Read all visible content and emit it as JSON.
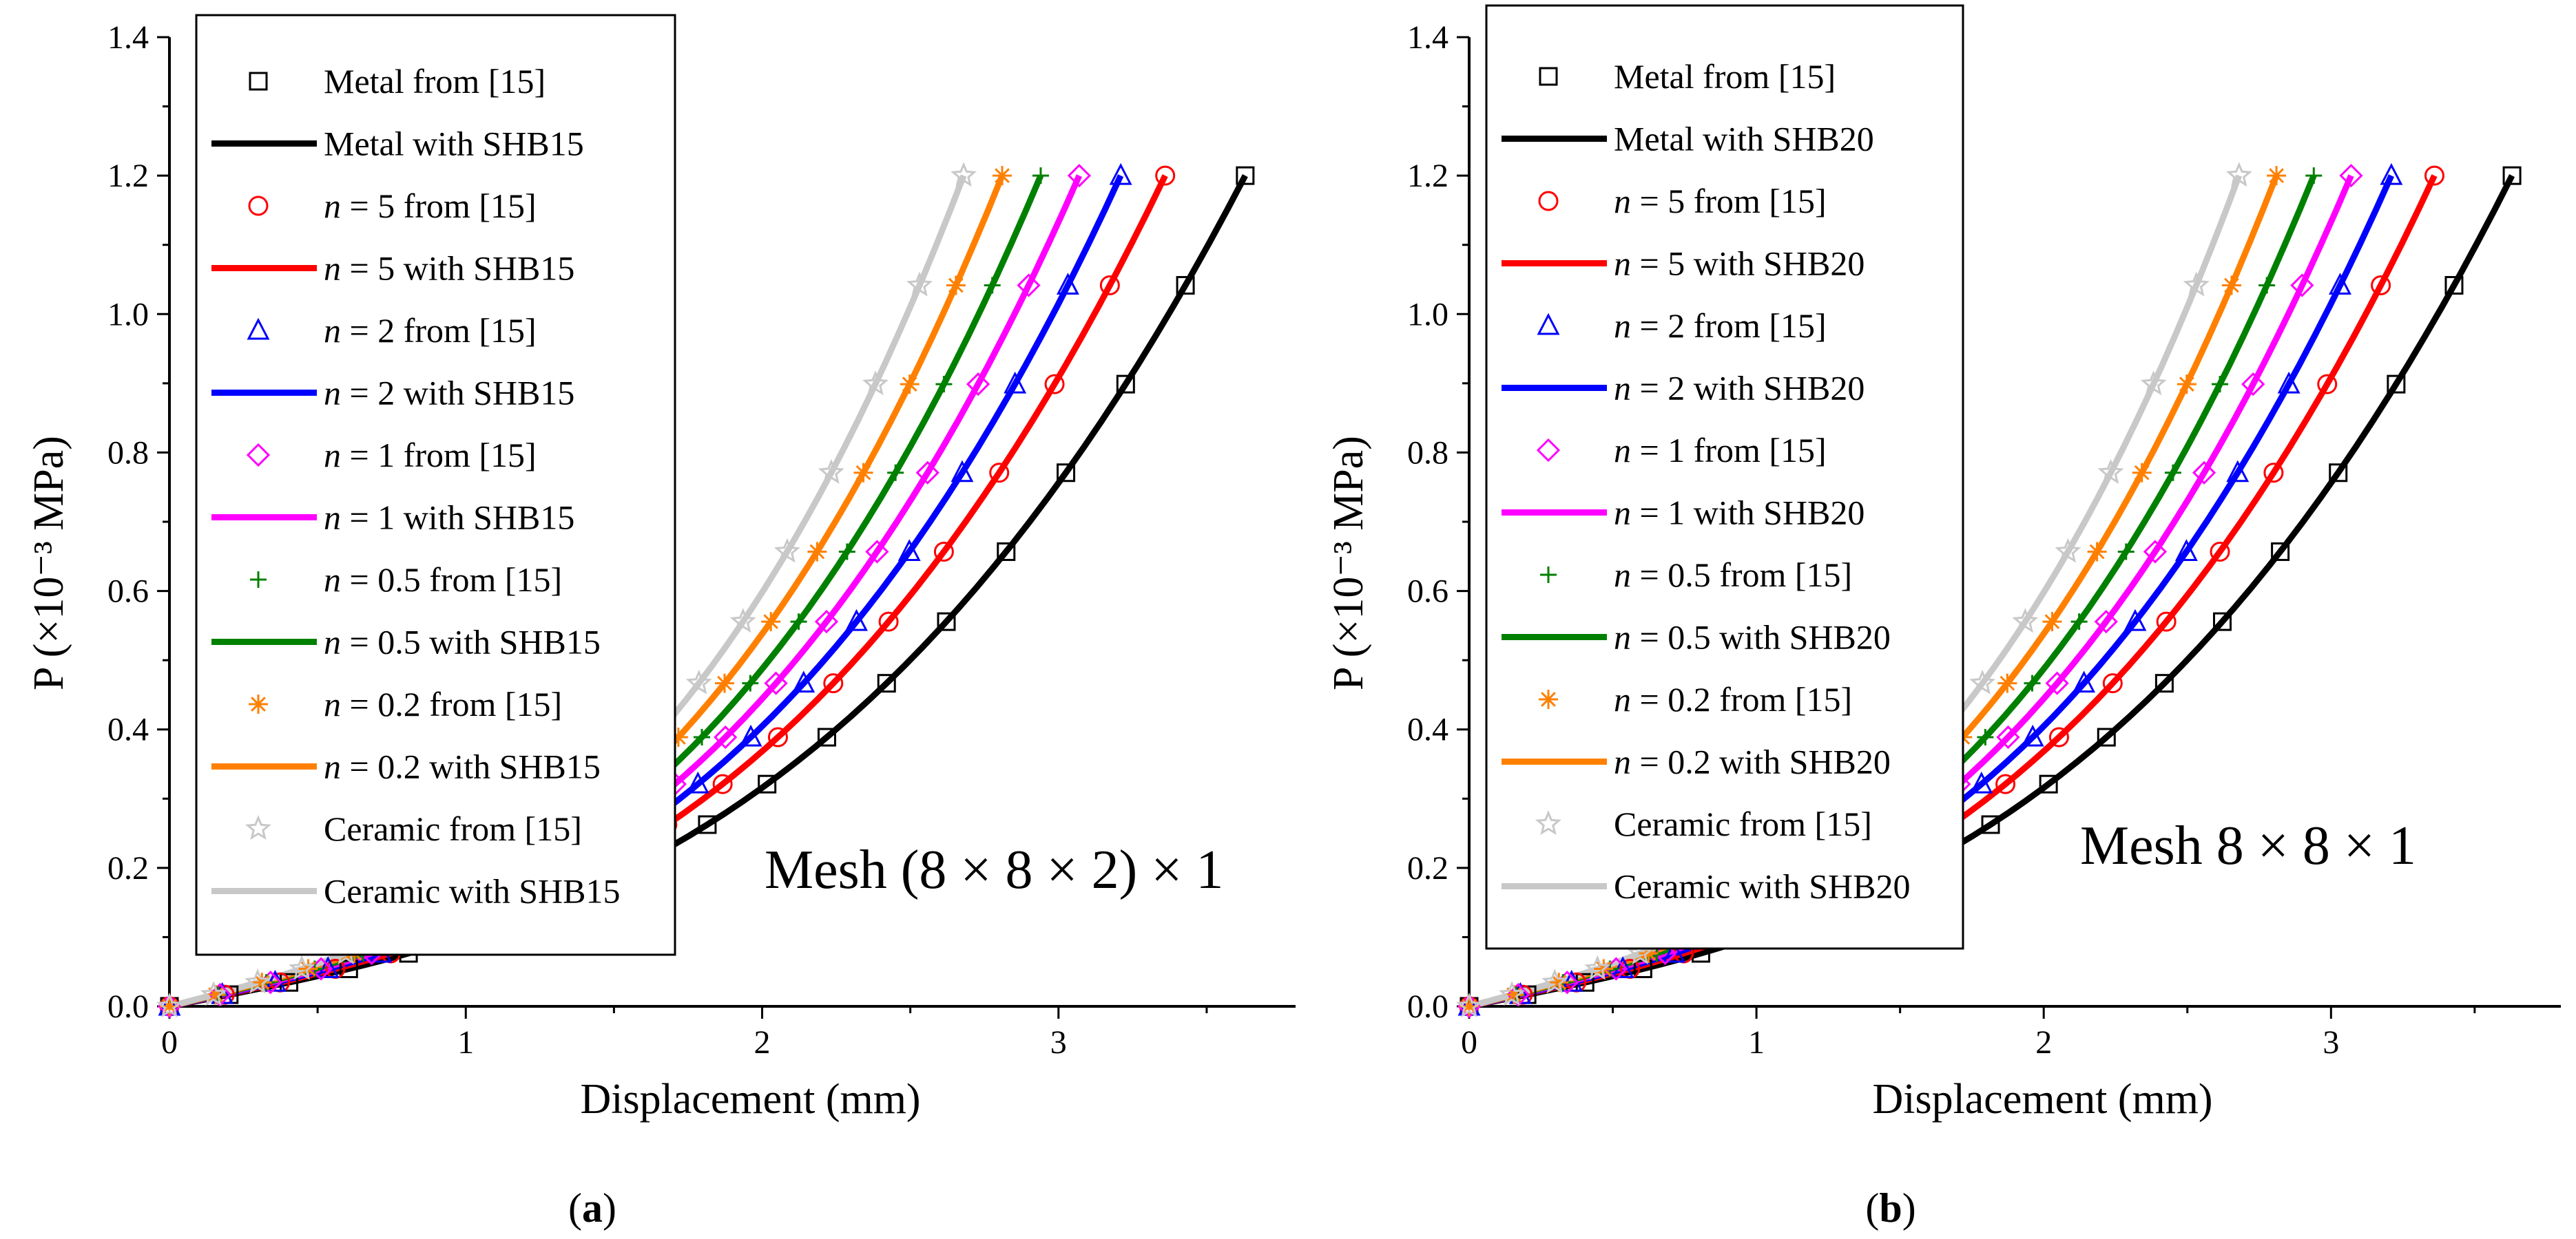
{
  "chart_data": [
    {
      "type": "line",
      "panel_label": "(a)",
      "annotation": "Mesh (8 × 8 × 2) × 1",
      "xlabel": "Displacement (mm)",
      "ylabel": "P (×10⁻³ MPa)",
      "xlim": [
        0,
        3.8
      ],
      "ylim": [
        0,
        1.4
      ],
      "xticks": [
        "0",
        "1",
        "2",
        "3"
      ],
      "yticks": [
        "0.0",
        "0.2",
        "0.4",
        "0.6",
        "0.8",
        "1.0",
        "1.2",
        "1.4"
      ],
      "series": [
        {
          "name": "Metal",
          "ref_label": "Metal from [15]",
          "sim_label": "Metal with SHB15",
          "color": "#000000",
          "marker": "square",
          "umax": 3.63
        },
        {
          "name": "n = 5",
          "ref_label": "n = 5  from [15]",
          "sim_label": "n = 5 with SHB15",
          "color": "#ff0000",
          "marker": "circle",
          "umax": 3.36
        },
        {
          "name": "n = 2",
          "ref_label": "n = 2  from [15]",
          "sim_label": "n = 2 with SHB15",
          "color": "#0000ff",
          "marker": "triangle",
          "umax": 3.21
        },
        {
          "name": "n = 1",
          "ref_label": "n = 1  from [15]",
          "sim_label": "n = 1 with SHB15",
          "color": "#ff00ff",
          "marker": "diamond",
          "umax": 3.07
        },
        {
          "name": "n = 0.5",
          "ref_label": "n = 0.5  from [15]",
          "sim_label": "n = 0.5 with SHB15",
          "color": "#008000",
          "marker": "plus",
          "umax": 2.94
        },
        {
          "name": "n = 0.2",
          "ref_label": "n = 0.2  from [15]",
          "sim_label": "n = 0.2 with SHB15",
          "color": "#ff8000",
          "marker": "asterisk",
          "umax": 2.81
        },
        {
          "name": "Ceramic",
          "ref_label": "Ceramic  from [15]",
          "sim_label": "Ceramic with SHB15",
          "color": "#c8c8c8",
          "marker": "star",
          "umax": 2.68
        }
      ],
      "p_max": 1.2
    },
    {
      "type": "line",
      "panel_label": "(b)",
      "annotation": "Mesh 8 × 8 × 1",
      "xlabel": "Displacement (mm)",
      "ylabel": "P (×10⁻³ MPa)",
      "xlim": [
        0,
        3.8
      ],
      "ylim": [
        0,
        1.4
      ],
      "xticks": [
        "0",
        "1",
        "2",
        "3"
      ],
      "yticks": [
        "0.0",
        "0.2",
        "0.4",
        "0.6",
        "0.8",
        "1.0",
        "1.2",
        "1.4"
      ],
      "series": [
        {
          "name": "Metal",
          "ref_label": "Metal from [15]",
          "sim_label": "Metal with SHB20",
          "color": "#000000",
          "marker": "square",
          "umax": 3.63
        },
        {
          "name": "n = 5",
          "ref_label": "n = 5  from [15]",
          "sim_label": "n = 5 with SHB20",
          "color": "#ff0000",
          "marker": "circle",
          "umax": 3.36
        },
        {
          "name": "n = 2",
          "ref_label": "n = 2  from [15]",
          "sim_label": "n = 2 with SHB20",
          "color": "#0000ff",
          "marker": "triangle",
          "umax": 3.21
        },
        {
          "name": "n = 1",
          "ref_label": "n = 1  from [15]",
          "sim_label": "n = 1 with SHB20",
          "color": "#ff00ff",
          "marker": "diamond",
          "umax": 3.07
        },
        {
          "name": "n = 0.5",
          "ref_label": "n = 0.5  from [15]",
          "sim_label": "n = 0.5 with SHB20",
          "color": "#008000",
          "marker": "plus",
          "umax": 2.94
        },
        {
          "name": "n = 0.2",
          "ref_label": "n = 0.2  from [15]",
          "sim_label": "n = 0.2 with SHB20",
          "color": "#ff8000",
          "marker": "asterisk",
          "umax": 2.81
        },
        {
          "name": "Ceramic",
          "ref_label": "Ceramic  from [15]",
          "sim_label": "Ceramic with SHB20",
          "color": "#c8c8c8",
          "marker": "star",
          "umax": 2.68
        }
      ],
      "p_max": 1.2
    }
  ]
}
